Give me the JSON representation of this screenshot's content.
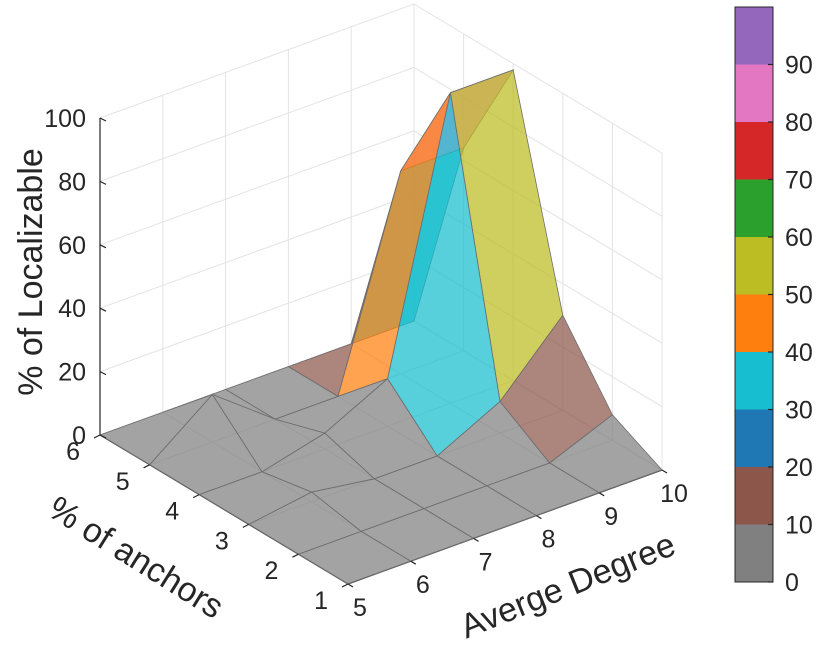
{
  "chart_data": {
    "type": "surface3d",
    "x": [
      5,
      6,
      7,
      8,
      9,
      10
    ],
    "y": [
      1,
      2,
      3,
      4,
      5,
      6
    ],
    "z": [
      [
        0,
        0,
        0,
        0,
        0,
        0
      ],
      [
        0,
        0,
        0,
        0,
        0,
        8
      ],
      [
        0,
        3,
        0,
        0,
        10,
        30
      ],
      [
        0,
        0,
        5,
        15,
        98,
        98
      ],
      [
        0,
        15,
        0,
        0,
        64,
        64
      ],
      [
        0,
        0,
        0,
        0,
        0,
        0
      ]
    ],
    "xlabel": "Averge Degree",
    "ylabel": "% of anchors",
    "zlabel": "% of Localizable",
    "zlim": [
      0,
      100
    ],
    "zticks": [
      0,
      20,
      40,
      60,
      80,
      100
    ],
    "colorbar": {
      "ticks": [
        0,
        10,
        20,
        30,
        40,
        50,
        60,
        70,
        80,
        90
      ],
      "colors": [
        "#808080",
        "#8c564b",
        "#1f77b4",
        "#17becf",
        "#ff7f0e",
        "#bcbd22",
        "#2ca02c",
        "#d62728",
        "#e377c2",
        "#9467bd"
      ]
    },
    "grid": true
  }
}
